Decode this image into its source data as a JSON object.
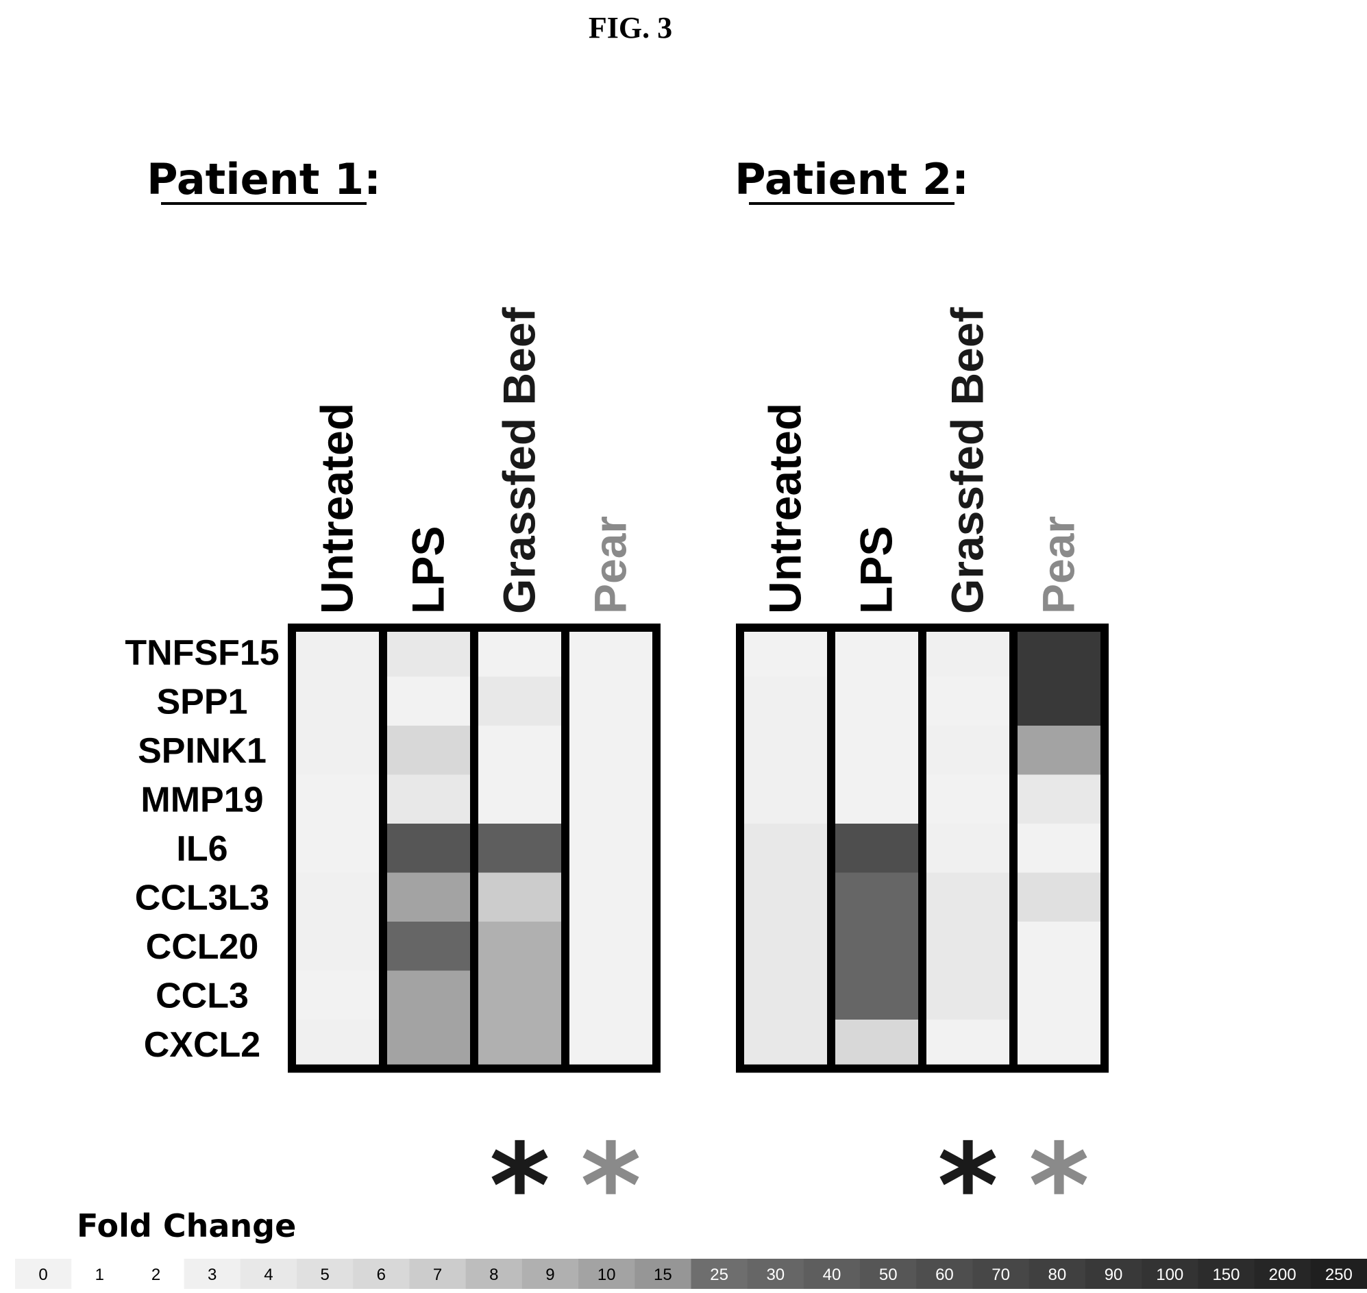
{
  "figure_label": "FIG. 3",
  "chart_data": {
    "type": "heatmap",
    "title": "FIG. 3",
    "rows": [
      "TNFSF15",
      "SPP1",
      "SPINK1",
      "MMP19",
      "IL6",
      "CCL3L3",
      "CCL20",
      "CCL3",
      "CXCL2"
    ],
    "columns": [
      "Untreated",
      "LPS",
      "Grassfed Beef",
      "Pear"
    ],
    "column_colors": [
      "#000000",
      "#000000",
      "#1a1a1a",
      "#8a8a8a"
    ],
    "panels": [
      {
        "title": "Patient 1:",
        "values": [
          [
            3,
            4,
            0,
            0
          ],
          [
            3,
            0,
            4,
            0
          ],
          [
            3,
            6,
            0,
            0
          ],
          [
            0,
            4,
            0,
            0
          ],
          [
            0,
            50,
            40,
            0
          ],
          [
            3,
            10,
            7,
            0
          ],
          [
            3,
            30,
            9,
            0
          ],
          [
            0,
            10,
            9,
            0
          ],
          [
            3,
            10,
            9,
            0
          ]
        ],
        "significance_markers": [
          "",
          "",
          "*",
          "*"
        ]
      },
      {
        "title": "Patient 2:",
        "values": [
          [
            0,
            0,
            3,
            90
          ],
          [
            3,
            0,
            0,
            90
          ],
          [
            3,
            0,
            3,
            10
          ],
          [
            3,
            0,
            0,
            4
          ],
          [
            4,
            60,
            3,
            0
          ],
          [
            4,
            30,
            4,
            5
          ],
          [
            4,
            30,
            4,
            0
          ],
          [
            4,
            30,
            4,
            0
          ],
          [
            4,
            6,
            0,
            0
          ]
        ],
        "significance_markers": [
          "",
          "",
          "*",
          "*"
        ]
      }
    ],
    "legend": {
      "title": "Fold Change",
      "placement": "bottom",
      "ticks": [
        "0",
        "1",
        "2",
        "3",
        "4",
        "5",
        "6",
        "7",
        "8",
        "9",
        "10",
        "15",
        "25",
        "30",
        "40",
        "50",
        "60",
        "70",
        "80",
        "90",
        "100",
        "150",
        "200",
        "250"
      ],
      "colors": [
        "#f2f2f2",
        "#ffffff",
        "#ffffff",
        "#f0f0f0",
        "#e8e8e8",
        "#e0e0e0",
        "#d8d8d8",
        "#cccccc",
        "#bdbdbd",
        "#b0b0b0",
        "#a3a3a3",
        "#969696",
        "#6e6e6e",
        "#666666",
        "#5e5e5e",
        "#565656",
        "#4e4e4e",
        "#474747",
        "#404040",
        "#393939",
        "#333333",
        "#2c2c2c",
        "#262626",
        "#1f1f1f"
      ],
      "tick_colors": [
        "#000000",
        "#000000",
        "#000000",
        "#000000",
        "#000000",
        "#000000",
        "#000000",
        "#000000",
        "#000000",
        "#000000",
        "#000000",
        "#000000",
        "#ffffff",
        "#ffffff",
        "#ffffff",
        "#ffffff",
        "#ffffff",
        "#ffffff",
        "#ffffff",
        "#ffffff",
        "#ffffff",
        "#ffffff",
        "#ffffff",
        "#ffffff"
      ]
    }
  }
}
